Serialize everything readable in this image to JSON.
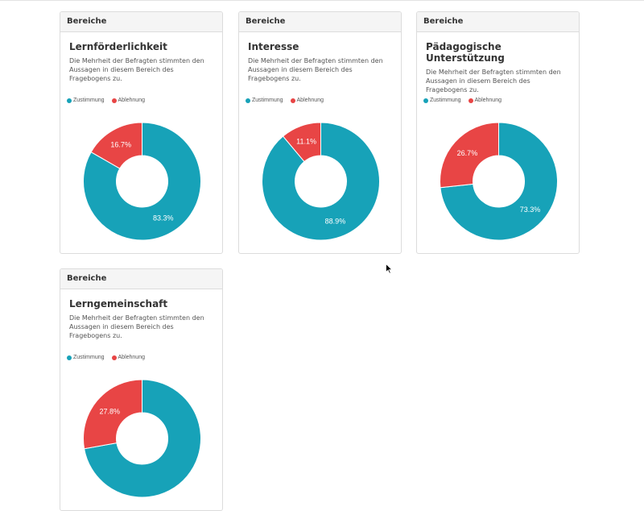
{
  "colors": {
    "zustimmung": "#17a2b8",
    "ablehnung": "#e84545"
  },
  "cards": [
    {
      "header": "Bereiche",
      "title": "Lernförderlichkeit",
      "description": "Die Mehrheit der Befragten stimmten den Aussagen in diesem Bereich des Fragebogens zu."
    },
    {
      "header": "Bereiche",
      "title": "Interesse",
      "description": "Die Mehrheit der Befragten stimmten den Aussagen in diesem Bereich des Fragebogens zu."
    },
    {
      "header": "Bereiche",
      "title": "Pädagogische Unterstützung",
      "description": "Die Mehrheit der Befragten stimmten den Aussagen in diesem Bereich des Fragebogens zu."
    },
    {
      "header": "Bereiche",
      "title": "Lerngemeinschaft",
      "description": "Die Mehrheit der Befragten stimmten den Aussagen in diesem Bereich des Fragebogens zu."
    }
  ],
  "chart_data": [
    {
      "type": "pie",
      "categories": [
        "Zustimmung",
        "Ablehnung"
      ],
      "values": [
        83.3,
        16.7
      ],
      "labels": [
        "83.3%",
        "16.7%"
      ],
      "legend": "top-left"
    },
    {
      "type": "pie",
      "categories": [
        "Zustimmung",
        "Ablehnung"
      ],
      "values": [
        88.9,
        11.1
      ],
      "labels": [
        "88.9%",
        "11.1%"
      ],
      "legend": "top-left"
    },
    {
      "type": "pie",
      "categories": [
        "Zustimmung",
        "Ablehnung"
      ],
      "values": [
        73.3,
        26.7
      ],
      "labels": [
        "73.3%",
        "26.7%"
      ],
      "legend": "top-left"
    },
    {
      "type": "pie",
      "categories": [
        "Zustimmung",
        "Ablehnung"
      ],
      "values": [
        72.2,
        27.8
      ],
      "labels": [
        "",
        "27.8%"
      ],
      "legend": "top-left"
    }
  ]
}
